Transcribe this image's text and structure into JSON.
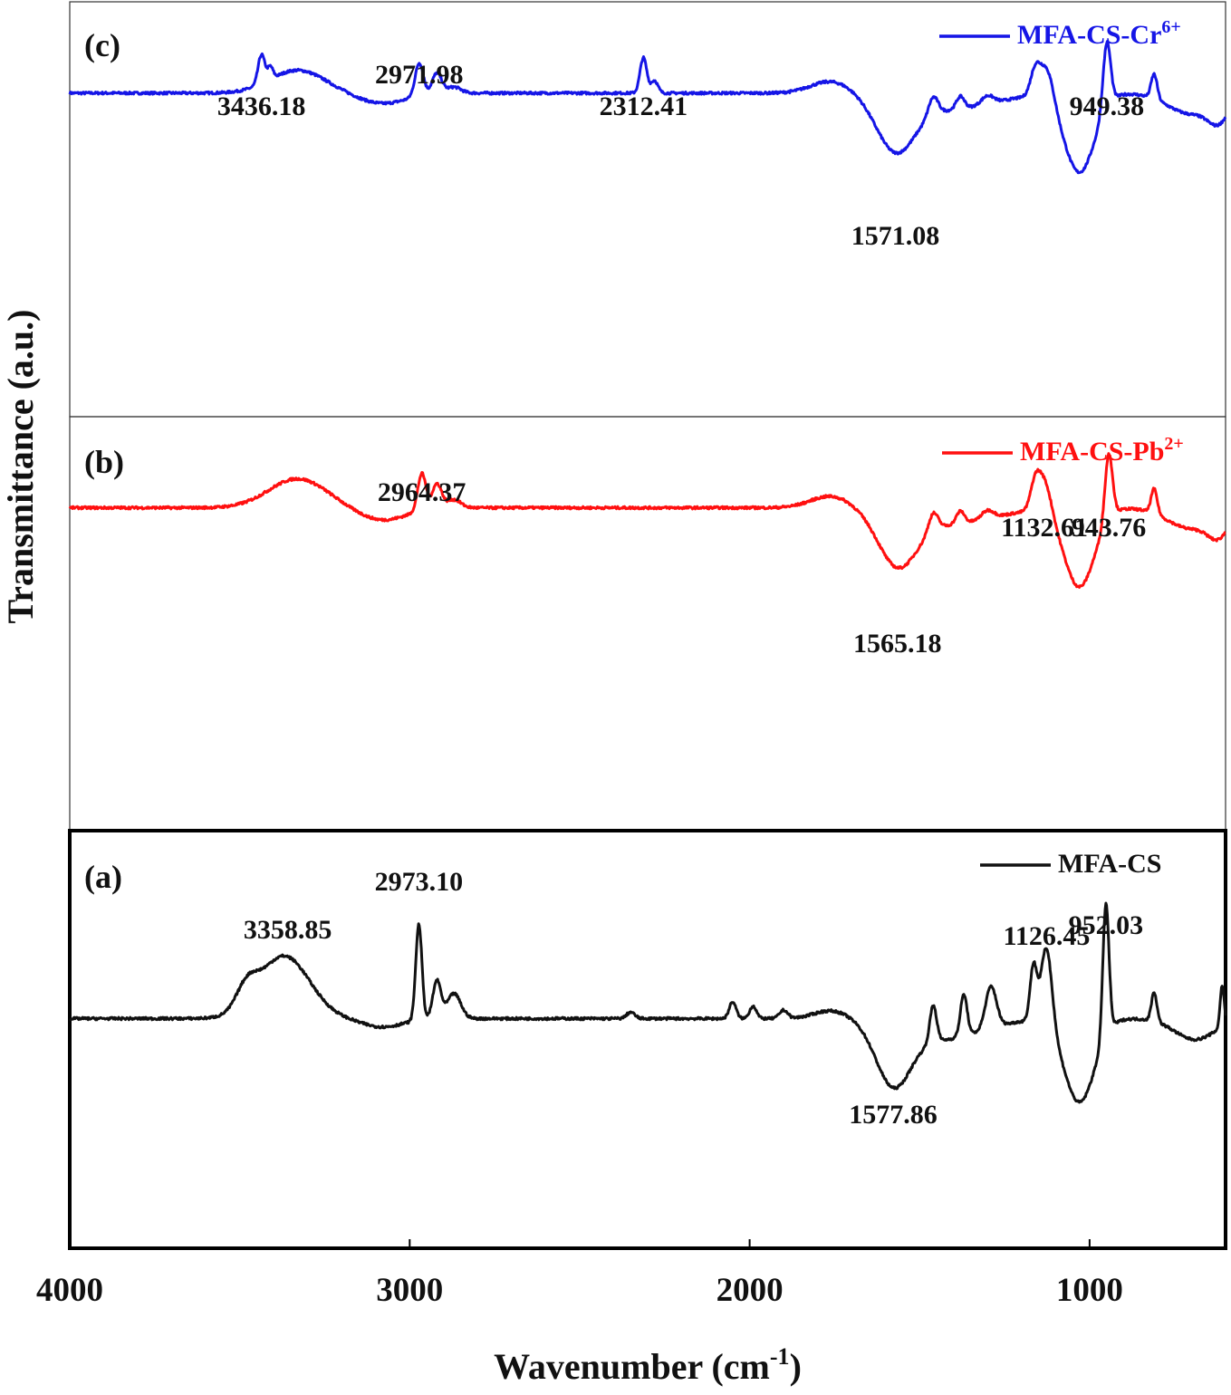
{
  "chart_data": {
    "type": "line",
    "xlabel": "Wavenumber (cm",
    "xlabel_sup": "-1",
    "xlabel_end": ")",
    "ylabel": "Transmittance (a.u.)",
    "xlim": [
      4000,
      600
    ],
    "x_ticks": [
      {
        "value": 4000,
        "label": "4000"
      },
      {
        "value": 3000,
        "label": "3000"
      },
      {
        "value": 2000,
        "label": "2000"
      },
      {
        "value": 1000,
        "label": "1000"
      }
    ],
    "panels": [
      {
        "id": "c",
        "letter": "(c)",
        "legend": "MFA-CS-Cr",
        "legend_sup": "6+",
        "color": "#1515e6",
        "baseline": 0.78,
        "features": [
          {
            "x": 3436.18,
            "h": 0.07,
            "w": 10
          },
          {
            "x": 3410,
            "h": 0.03,
            "w": 8
          },
          {
            "x": 3330,
            "h": 0.055,
            "w": 80
          },
          {
            "x": 3080,
            "h": -0.025,
            "w": 70
          },
          {
            "x": 2971.98,
            "h": 0.08,
            "w": 12
          },
          {
            "x": 2920,
            "h": 0.05,
            "w": 14
          },
          {
            "x": 2870,
            "h": 0.015,
            "w": 20
          },
          {
            "x": 2312.41,
            "h": 0.085,
            "w": 10
          },
          {
            "x": 2280,
            "h": 0.03,
            "w": 10
          },
          {
            "x": 1760,
            "h": 0.03,
            "w": 60
          },
          {
            "x": 1571.08,
            "h": -0.12,
            "w": 55
          },
          {
            "x": 1430,
            "h": -0.04,
            "w": 140
          },
          {
            "x": 1460,
            "h": 0.045,
            "w": 14
          },
          {
            "x": 1380,
            "h": 0.03,
            "w": 12
          },
          {
            "x": 1300,
            "h": 0.02,
            "w": 18
          },
          {
            "x": 1160,
            "h": 0.06,
            "w": 14
          },
          {
            "x": 1126,
            "h": 0.08,
            "w": 20
          },
          {
            "x": 1030,
            "h": -0.19,
            "w": 45
          },
          {
            "x": 949.38,
            "h": 0.16,
            "w": 11
          },
          {
            "x": 810,
            "h": 0.06,
            "w": 9
          },
          {
            "x": 700,
            "h": -0.05,
            "w": 70
          },
          {
            "x": 620,
            "h": -0.05,
            "w": 30
          }
        ],
        "annotations": [
          {
            "text": "3436.18",
            "x": 3436.18,
            "pos": "above"
          },
          {
            "text": "2971.98",
            "x": 2971.98,
            "pos": "above-high"
          },
          {
            "text": "2312.41",
            "x": 2312.41,
            "pos": "above"
          },
          {
            "text": "949.38",
            "x": 949.38,
            "pos": "above"
          },
          {
            "text": "1571.08",
            "x": 1571.08,
            "pos": "below"
          }
        ]
      },
      {
        "id": "b",
        "letter": "(b)",
        "legend": "MFA-CS-Pb",
        "legend_sup": "2+",
        "color": "#ff1010",
        "baseline": 0.78,
        "features": [
          {
            "x": 3330,
            "h": 0.07,
            "w": 85
          },
          {
            "x": 3080,
            "h": -0.03,
            "w": 70
          },
          {
            "x": 2964.37,
            "h": 0.09,
            "w": 12
          },
          {
            "x": 2920,
            "h": 0.06,
            "w": 14
          },
          {
            "x": 2870,
            "h": 0.02,
            "w": 20
          },
          {
            "x": 1760,
            "h": 0.03,
            "w": 60
          },
          {
            "x": 1565.18,
            "h": -0.12,
            "w": 55
          },
          {
            "x": 1430,
            "h": -0.04,
            "w": 140
          },
          {
            "x": 1460,
            "h": 0.045,
            "w": 14
          },
          {
            "x": 1380,
            "h": 0.03,
            "w": 12
          },
          {
            "x": 1300,
            "h": 0.02,
            "w": 18
          },
          {
            "x": 1160,
            "h": 0.06,
            "w": 14
          },
          {
            "x": 1132.61,
            "h": 0.08,
            "w": 20
          },
          {
            "x": 1030,
            "h": -0.19,
            "w": 45
          },
          {
            "x": 943.76,
            "h": 0.16,
            "w": 11
          },
          {
            "x": 810,
            "h": 0.06,
            "w": 9
          },
          {
            "x": 700,
            "h": -0.05,
            "w": 70
          },
          {
            "x": 620,
            "h": -0.05,
            "w": 30
          }
        ],
        "annotations": [
          {
            "text": "2964.37",
            "x": 2964.37,
            "pos": "above"
          },
          {
            "text": "1132.61",
            "x": 1132.61,
            "pos": "above"
          },
          {
            "text": "943.76",
            "x": 943.76,
            "pos": "above"
          },
          {
            "text": "1565.18",
            "x": 1565.18,
            "pos": "below"
          }
        ]
      },
      {
        "id": "a",
        "letter": "(a)",
        "legend": "MFA-CS",
        "legend_sup": "",
        "color": "#111111",
        "baseline": 0.55,
        "features": [
          {
            "x": 3370,
            "h": 0.15,
            "w": 75
          },
          {
            "x": 3480,
            "h": 0.05,
            "w": 30
          },
          {
            "x": 3080,
            "h": -0.02,
            "w": 60
          },
          {
            "x": 2973.1,
            "h": 0.23,
            "w": 9
          },
          {
            "x": 2920,
            "h": 0.09,
            "w": 12
          },
          {
            "x": 2870,
            "h": 0.06,
            "w": 20
          },
          {
            "x": 2350,
            "h": 0.015,
            "w": 12
          },
          {
            "x": 2050,
            "h": 0.04,
            "w": 10
          },
          {
            "x": 1990,
            "h": 0.03,
            "w": 10
          },
          {
            "x": 1900,
            "h": 0.02,
            "w": 12
          },
          {
            "x": 1760,
            "h": 0.02,
            "w": 50
          },
          {
            "x": 1577.86,
            "h": -0.14,
            "w": 50
          },
          {
            "x": 1440,
            "h": -0.05,
            "w": 120
          },
          {
            "x": 1460,
            "h": 0.09,
            "w": 10
          },
          {
            "x": 1370,
            "h": 0.1,
            "w": 10
          },
          {
            "x": 1290,
            "h": 0.1,
            "w": 16
          },
          {
            "x": 1165,
            "h": 0.13,
            "w": 10
          },
          {
            "x": 1126.45,
            "h": 0.19,
            "w": 16
          },
          {
            "x": 1030,
            "h": -0.2,
            "w": 45
          },
          {
            "x": 952.03,
            "h": 0.32,
            "w": 9
          },
          {
            "x": 810,
            "h": 0.07,
            "w": 8
          },
          {
            "x": 690,
            "h": -0.05,
            "w": 60
          },
          {
            "x": 610,
            "h": 0.1,
            "w": 6
          }
        ],
        "annotations": [
          {
            "text": "3358.85",
            "x": 3358.85,
            "pos": "above"
          },
          {
            "text": "2973.10",
            "x": 2973.1,
            "pos": "above"
          },
          {
            "text": "1126.45",
            "x": 1126.45,
            "pos": "above"
          },
          {
            "text": "952.03",
            "x": 952.03,
            "pos": "above"
          },
          {
            "text": "1577.86",
            "x": 1577.86,
            "pos": "below"
          }
        ]
      }
    ]
  }
}
